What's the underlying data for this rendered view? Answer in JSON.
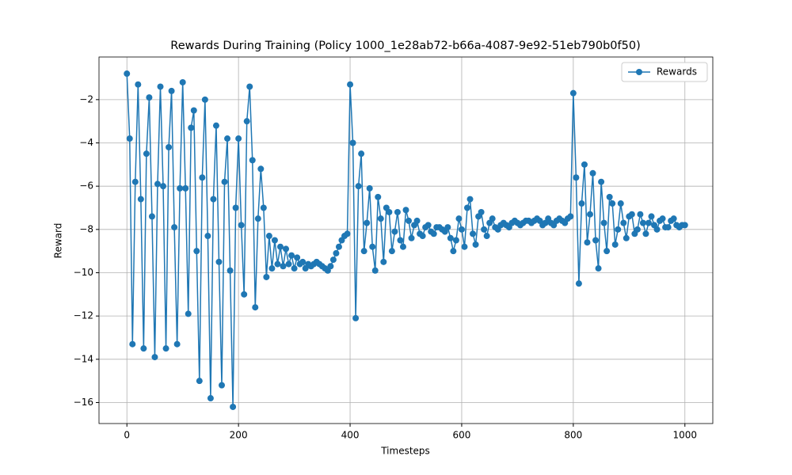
{
  "chart_data": {
    "type": "line",
    "title": "Rewards During Training (Policy 1000_1e28ab72-b66a-4087-9e92-51eb790b0f50)",
    "x_label": "Timesteps",
    "y_label": "Reward",
    "x": [
      0,
      5,
      10,
      15,
      20,
      25,
      30,
      35,
      40,
      45,
      50,
      55,
      60,
      65,
      70,
      75,
      80,
      85,
      90,
      95,
      100,
      105,
      110,
      115,
      120,
      125,
      130,
      135,
      140,
      145,
      150,
      155,
      160,
      165,
      170,
      175,
      180,
      185,
      190,
      195,
      200,
      205,
      210,
      215,
      220,
      225,
      230,
      235,
      240,
      245,
      250,
      255,
      260,
      265,
      270,
      275,
      280,
      285,
      290,
      295,
      300,
      305,
      310,
      315,
      320,
      325,
      330,
      335,
      340,
      345,
      350,
      355,
      360,
      365,
      370,
      375,
      380,
      385,
      390,
      395,
      400,
      405,
      410,
      415,
      420,
      425,
      430,
      435,
      440,
      445,
      450,
      455,
      460,
      465,
      470,
      475,
      480,
      485,
      490,
      495,
      500,
      505,
      510,
      515,
      520,
      525,
      530,
      535,
      540,
      545,
      550,
      555,
      560,
      565,
      570,
      575,
      580,
      585,
      590,
      595,
      600,
      605,
      610,
      615,
      620,
      625,
      630,
      635,
      640,
      645,
      650,
      655,
      660,
      665,
      670,
      675,
      680,
      685,
      690,
      695,
      700,
      705,
      710,
      715,
      720,
      725,
      730,
      735,
      740,
      745,
      750,
      755,
      760,
      765,
      770,
      775,
      780,
      785,
      790,
      795,
      800,
      805,
      810,
      815,
      820,
      825,
      830,
      835,
      840,
      845,
      850,
      855,
      860,
      865,
      870,
      875,
      880,
      885,
      890,
      895,
      900,
      905,
      910,
      915,
      920,
      925,
      930,
      935,
      940,
      945,
      950,
      955,
      960,
      965,
      970,
      975,
      980,
      985,
      990,
      995,
      1000
    ],
    "series": [
      {
        "name": "Rewards",
        "color": "#1f77b4",
        "values": [
          -0.8,
          -3.8,
          -13.3,
          -5.8,
          -1.3,
          -6.6,
          -13.5,
          -4.5,
          -1.9,
          -7.4,
          -13.9,
          -5.9,
          -1.4,
          -6.0,
          -13.5,
          -4.2,
          -1.6,
          -7.9,
          -13.3,
          -6.1,
          -1.2,
          -6.1,
          -11.9,
          -3.3,
          -2.5,
          -9.0,
          -15.0,
          -5.6,
          -2.0,
          -8.3,
          -15.8,
          -6.6,
          -3.2,
          -9.5,
          -15.2,
          -5.8,
          -3.8,
          -9.9,
          -16.2,
          -7.0,
          -3.8,
          -7.8,
          -11.0,
          -3.0,
          -1.4,
          -4.8,
          -11.6,
          -7.5,
          -5.2,
          -7.0,
          -10.2,
          -8.3,
          -9.8,
          -8.5,
          -9.6,
          -8.8,
          -9.7,
          -8.9,
          -9.6,
          -9.2,
          -9.8,
          -9.3,
          -9.6,
          -9.5,
          -9.8,
          -9.6,
          -9.7,
          -9.6,
          -9.5,
          -9.6,
          -9.7,
          -9.8,
          -9.9,
          -9.7,
          -9.4,
          -9.1,
          -8.8,
          -8.5,
          -8.3,
          -8.2,
          -1.3,
          -4.0,
          -12.1,
          -6.0,
          -4.5,
          -9.0,
          -7.7,
          -6.1,
          -8.8,
          -9.9,
          -6.5,
          -7.5,
          -9.5,
          -7.0,
          -7.2,
          -9.0,
          -8.1,
          -7.2,
          -8.5,
          -8.8,
          -7.1,
          -7.6,
          -8.4,
          -7.8,
          -7.6,
          -8.2,
          -8.3,
          -7.9,
          -7.8,
          -8.1,
          -8.2,
          -7.9,
          -7.9,
          -8.0,
          -8.1,
          -7.9,
          -8.4,
          -9.0,
          -8.5,
          -7.5,
          -8.0,
          -8.8,
          -7.0,
          -6.6,
          -8.2,
          -8.7,
          -7.4,
          -7.2,
          -8.0,
          -8.3,
          -7.7,
          -7.5,
          -7.9,
          -8.0,
          -7.8,
          -7.7,
          -7.8,
          -7.9,
          -7.7,
          -7.6,
          -7.7,
          -7.8,
          -7.7,
          -7.6,
          -7.6,
          -7.7,
          -7.6,
          -7.5,
          -7.6,
          -7.8,
          -7.7,
          -7.5,
          -7.7,
          -7.8,
          -7.6,
          -7.5,
          -7.6,
          -7.7,
          -7.5,
          -7.4,
          -1.7,
          -5.6,
          -10.5,
          -6.8,
          -5.0,
          -8.6,
          -7.3,
          -5.4,
          -8.5,
          -9.8,
          -5.8,
          -7.7,
          -9.0,
          -6.5,
          -6.8,
          -8.7,
          -8.0,
          -6.8,
          -7.7,
          -8.4,
          -7.4,
          -7.3,
          -8.2,
          -8.0,
          -7.3,
          -7.7,
          -8.2,
          -7.7,
          -7.4,
          -7.8,
          -8.0,
          -7.6,
          -7.5,
          -7.9,
          -7.9,
          -7.6,
          -7.5,
          -7.8,
          -7.9,
          -7.8,
          -7.8
        ]
      }
    ],
    "xlim": [
      -50,
      1050
    ],
    "ylim": [
      -16.97,
      -0.03
    ],
    "xticks": [
      0,
      200,
      400,
      600,
      800,
      1000
    ],
    "yticks": [
      {
        "value": -16,
        "label": "−16"
      },
      {
        "value": -14,
        "label": "−14"
      },
      {
        "value": -12,
        "label": "−12"
      },
      {
        "value": -10,
        "label": "−10"
      },
      {
        "value": -8,
        "label": "−8"
      },
      {
        "value": -6,
        "label": "−6"
      },
      {
        "value": -4,
        "label": "−4"
      },
      {
        "value": -2,
        "label": "−2"
      }
    ],
    "grid": true,
    "legend": "upper right"
  }
}
